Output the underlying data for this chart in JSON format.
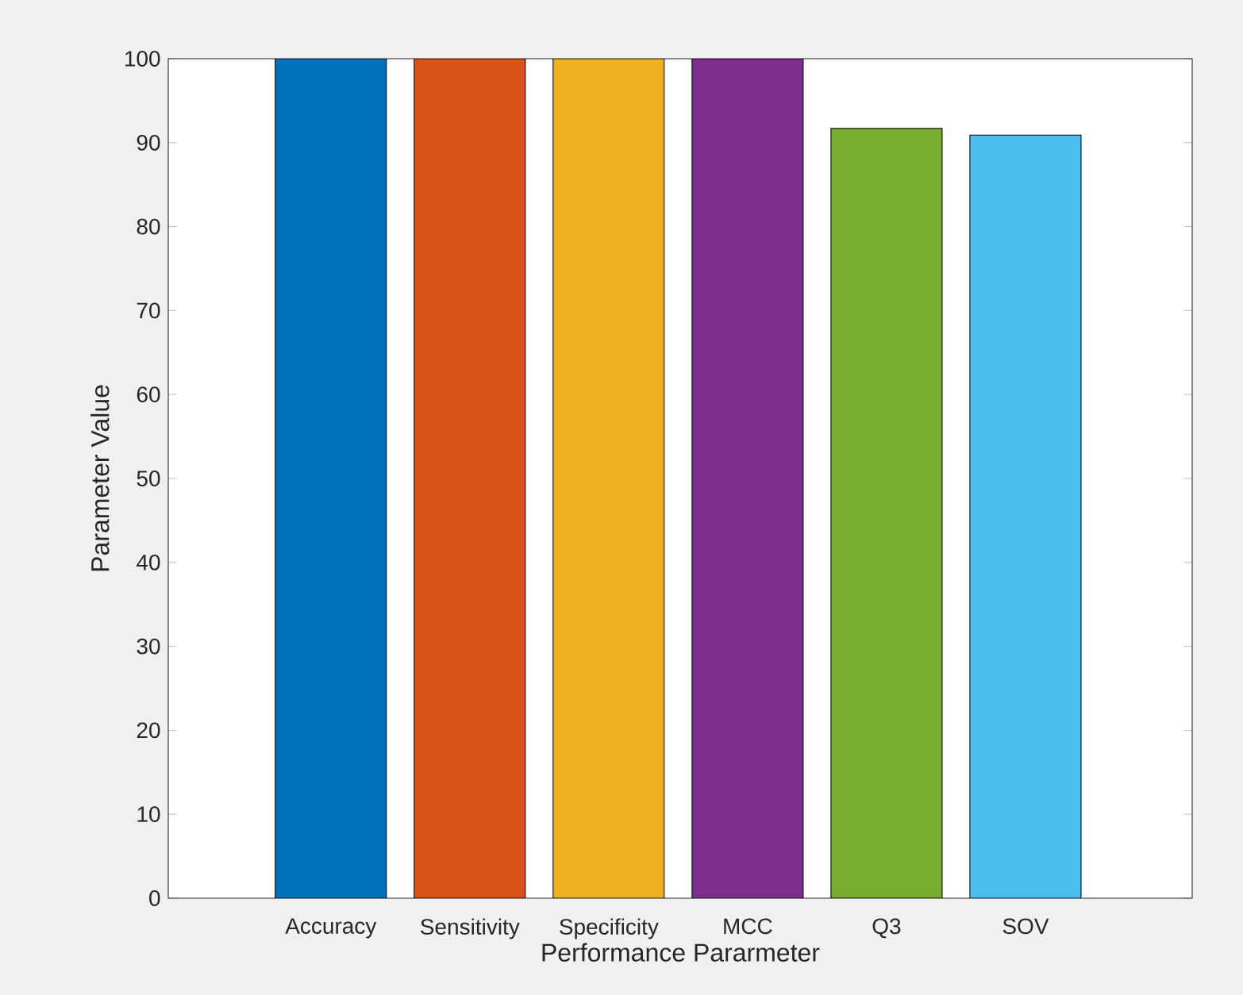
{
  "chart_data": {
    "type": "bar",
    "xlabel": "Performance Pararmeter",
    "ylabel": "Parameter Value",
    "categories": [
      "Accuracy",
      "Sensitivity",
      "Specificity",
      "MCC",
      "Q3",
      "SOV"
    ],
    "values": [
      100,
      100,
      100,
      100,
      91.7,
      90.9
    ],
    "colors": [
      "#0072bd",
      "#d95319",
      "#edb120",
      "#7e2f8e",
      "#77ac30",
      "#4dbeee"
    ],
    "ylim": [
      0,
      100
    ],
    "yticks": [
      0,
      10,
      20,
      30,
      40,
      50,
      60,
      70,
      80,
      90,
      100
    ],
    "grid": false
  }
}
